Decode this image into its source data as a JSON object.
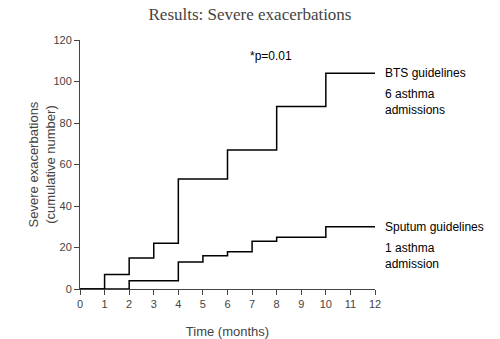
{
  "chart_data": {
    "type": "step",
    "title": "Results: Severe exacerbations",
    "x_label": "Time (months)",
    "y_label": "Severe exacerbations\n(cumulative number)",
    "annotations": [
      "*p=0.01"
    ],
    "series": [
      {
        "name": "BTS guidelines",
        "annotation": "6 asthma\nadmissions",
        "color": "#000000",
        "x": [
          0,
          1,
          2,
          3,
          4,
          6,
          7,
          8,
          10,
          12
        ],
        "values": [
          0,
          7,
          15,
          22,
          53,
          67,
          67,
          88,
          104,
          104
        ]
      },
      {
        "name": "Sputum guidelines",
        "annotation": "1 asthma\nadmission",
        "color": "#000000",
        "x": [
          0,
          1,
          2,
          3,
          4,
          5,
          6,
          7,
          8,
          9,
          10,
          12
        ],
        "values": [
          0,
          0,
          4,
          4,
          13,
          16,
          18,
          23,
          25,
          25,
          30,
          30
        ]
      }
    ],
    "xlim": [
      0,
      12
    ],
    "ylim": [
      0,
      120
    ],
    "xticks": [
      0,
      1,
      2,
      3,
      4,
      5,
      6,
      7,
      8,
      9,
      10,
      11,
      12
    ],
    "yticks": [
      0,
      20,
      40,
      60,
      80,
      100,
      120
    ],
    "grid": false
  }
}
